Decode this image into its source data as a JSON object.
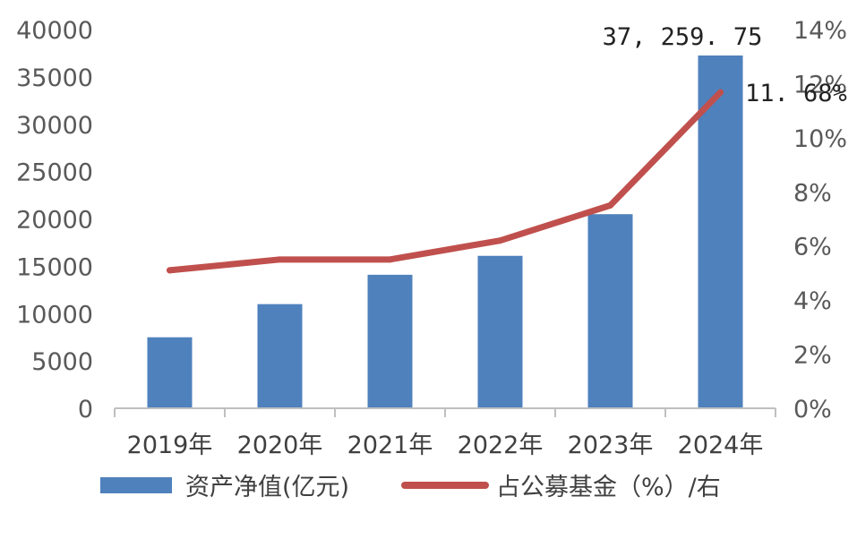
{
  "chart_data": {
    "type": "bar+line",
    "categories": [
      "2019年",
      "2020年",
      "2021年",
      "2022年",
      "2023年",
      "2024年"
    ],
    "series": [
      {
        "name": "资产净值(亿元)",
        "type": "bar",
        "axis": "left",
        "color": "#4f81bd",
        "values": [
          7500,
          11000,
          14100,
          16100,
          20500,
          37259.75
        ]
      },
      {
        "name": "占公募基金（%）/右",
        "type": "line",
        "axis": "right",
        "color": "#c0504d",
        "values": [
          5.1,
          5.5,
          5.5,
          6.2,
          7.5,
          11.68
        ]
      }
    ],
    "y_left": {
      "min": 0,
      "max": 40000,
      "ticks": [
        "0",
        "5000",
        "10000",
        "15000",
        "20000",
        "25000",
        "30000",
        "35000",
        "40000"
      ]
    },
    "y_right": {
      "min": 0,
      "max": 14,
      "ticks": [
        "0%",
        "2%",
        "4%",
        "6%",
        "8%",
        "10%",
        "12%",
        "14%"
      ]
    },
    "data_labels": {
      "bar_last": "37, 259. 75",
      "line_last": "11. 68%"
    },
    "legend": {
      "position": "bottom",
      "bar_label": "资产净值(亿元)",
      "line_label": "占公募基金（%）/右"
    },
    "grid": false
  }
}
